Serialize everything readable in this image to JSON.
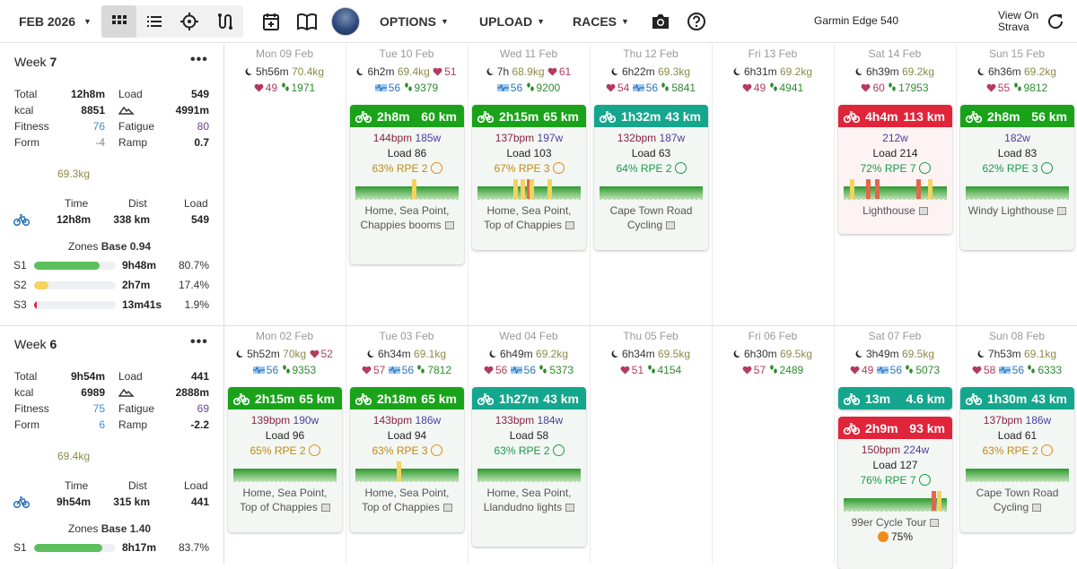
{
  "header": {
    "month": "FEB 2026",
    "options": "OPTIONS",
    "upload": "UPLOAD",
    "races": "RACES",
    "device": "Garmin Edge 540",
    "strava_line1": "View On",
    "strava_line2": "Strava"
  },
  "weeks": [
    {
      "label": "Week",
      "number": "7",
      "total_label": "Total",
      "total": "12h8m",
      "load_label": "Load",
      "load": "549",
      "kcal_label": "kcal",
      "kcal": "8851",
      "elev": "4991m",
      "fitness_label": "Fitness",
      "fitness": "76",
      "fatigue_label": "Fatigue",
      "fatigue": "80",
      "form_label": "Form",
      "form": "-4",
      "ramp_label": "Ramp",
      "ramp": "0.7",
      "weight": "69.3kg",
      "time_h": "Time",
      "dist_h": "Dist",
      "load_h": "Load",
      "bike_time": "12h8m",
      "bike_dist": "338 km",
      "bike_load": "549",
      "zones_label": "Zones",
      "zones_base": "Base 0.94",
      "zones": [
        {
          "name": "S1",
          "time": "9h48m",
          "pct": "80.7%",
          "value": 0.807,
          "color": "#5cbf5c"
        },
        {
          "name": "S2",
          "time": "2h7m",
          "pct": "17.4%",
          "value": 0.174,
          "color": "#f4d35e"
        },
        {
          "name": "S3",
          "time": "13m41s",
          "pct": "1.9%",
          "value": 0.019,
          "color": "#e0243a"
        }
      ]
    },
    {
      "label": "Week",
      "number": "6",
      "total_label": "Total",
      "total": "9h54m",
      "load_label": "Load",
      "load": "441",
      "kcal_label": "kcal",
      "kcal": "6989",
      "elev": "2888m",
      "fitness_label": "Fitness",
      "fitness": "75",
      "fatigue_label": "Fatigue",
      "fatigue": "69",
      "form_label": "Form",
      "form": "6",
      "ramp_label": "Ramp",
      "ramp": "-2.2",
      "weight": "69.4kg",
      "time_h": "Time",
      "dist_h": "Dist",
      "load_h": "Load",
      "bike_time": "9h54m",
      "bike_dist": "315 km",
      "bike_load": "441",
      "zones_label": "Zones",
      "zones_base": "Base 1.40",
      "zones": [
        {
          "name": "S1",
          "time": "8h17m",
          "pct": "83.7%",
          "value": 0.837,
          "color": "#5cbf5c"
        }
      ]
    }
  ],
  "days_w7": [
    {
      "date": "Mon 09 Feb",
      "sleep": "5h56m",
      "kg": "70.4kg",
      "hr": "49",
      "steps": "1971"
    },
    {
      "date": "Tue 10 Feb",
      "sleep": "6h2m",
      "kg": "69.4kg",
      "hrtop": "51",
      "hrv": "56",
      "steps": "9379"
    },
    {
      "date": "Wed 11 Feb",
      "sleep": "7h",
      "kg": "68.9kg",
      "hrtop": "61",
      "hrv": "56",
      "steps": "9200"
    },
    {
      "date": "Thu 12 Feb",
      "sleep": "6h22m",
      "kg": "69.3kg",
      "hr": "54",
      "hrv": "56",
      "steps": "5841"
    },
    {
      "date": "Fri 13 Feb",
      "sleep": "6h31m",
      "kg": "69.2kg",
      "hr": "49",
      "steps": "4941"
    },
    {
      "date": "Sat 14 Feb",
      "sleep": "6h39m",
      "kg": "69.2kg",
      "hr": "60",
      "steps": "17953"
    },
    {
      "date": "Sun 15 Feb",
      "sleep": "6h36m",
      "kg": "69.2kg",
      "hr": "55",
      "steps": "9812"
    }
  ],
  "days_w6": [
    {
      "date": "Mon 02 Feb",
      "sleep": "5h52m",
      "kg": "70kg",
      "hrtop": "52",
      "hrv": "56",
      "steps": "9353"
    },
    {
      "date": "Tue 03 Feb",
      "sleep": "6h34m",
      "kg": "69.1kg",
      "hr": "57",
      "hrv": "56",
      "steps": "7812"
    },
    {
      "date": "Wed 04 Feb",
      "sleep": "6h49m",
      "kg": "69.2kg",
      "hr": "56",
      "hrv": "56",
      "steps": "5373"
    },
    {
      "date": "Thu 05 Feb",
      "sleep": "6h34m",
      "kg": "69.5kg",
      "hr": "51",
      "steps": "4154"
    },
    {
      "date": "Fri 06 Feb",
      "sleep": "6h30m",
      "kg": "69.5kg",
      "hr": "57",
      "steps": "2489"
    },
    {
      "date": "Sat 07 Feb",
      "sleep": "3h49m",
      "kg": "69.5kg",
      "hr": "49",
      "hrv": "56",
      "steps": "5073"
    },
    {
      "date": "Sun 08 Feb",
      "sleep": "7h53m",
      "kg": "69.1kg",
      "hr": "58",
      "hrv": "56",
      "steps": "6333"
    }
  ],
  "cards": [
    {
      "dur": "2h8m",
      "dist": "60 km",
      "bpm": "144bpm",
      "w": "185w",
      "load": "Load 86",
      "pct": "63%",
      "rpe": "RPE 2",
      "place1": "Home, Sea Point,",
      "place2": "Chappies booms"
    },
    {
      "dur": "2h15m",
      "dist": "65 km",
      "bpm": "137bpm",
      "w": "197w",
      "load": "Load 103",
      "pct": "67%",
      "rpe": "RPE 3",
      "place1": "Home, Sea Point,",
      "place2": "Top of Chappies"
    },
    {
      "dur": "1h32m",
      "dist": "43 km",
      "bpm": "132bpm",
      "w": "187w",
      "load": "Load 63",
      "pct": "64%",
      "rpe": "RPE 2",
      "place1": "Cape Town Road",
      "place2": "Cycling"
    },
    {
      "dur": "4h4m",
      "dist": "113 km",
      "w": "212w",
      "load": "Load 214",
      "pct": "72%",
      "rpe": "RPE 7",
      "place1": "Lighthouse"
    },
    {
      "dur": "2h8m",
      "dist": "56 km",
      "w": "182w",
      "load": "Load 83",
      "pct": "62%",
      "rpe": "RPE 3",
      "place1": "Windy Lighthouse"
    },
    {
      "dur": "2h15m",
      "dist": "65 km",
      "bpm": "139bpm",
      "w": "190w",
      "load": "Load 96",
      "pct": "65%",
      "rpe": "RPE 2",
      "place1": "Home, Sea Point,",
      "place2": "Top of Chappies"
    },
    {
      "dur": "2h18m",
      "dist": "65 km",
      "bpm": "143bpm",
      "w": "186w",
      "load": "Load 94",
      "pct": "63%",
      "rpe": "RPE 3",
      "place1": "Home, Sea Point,",
      "place2": "Top of Chappies"
    },
    {
      "dur": "1h27m",
      "dist": "43 km",
      "bpm": "133bpm",
      "w": "184w",
      "load": "Load 58",
      "pct": "63%",
      "rpe": "RPE 2",
      "place1": "Home, Sea Point,",
      "place2": "Llandudno lights"
    },
    {
      "dur": "13m",
      "dist": "4.6 km"
    },
    {
      "dur": "2h9m",
      "dist": "93 km",
      "bpm": "150bpm",
      "w": "224w",
      "load": "Load 127",
      "pct": "76%",
      "rpe": "RPE 7",
      "place1": "99er Cycle Tour",
      "done": "75%"
    },
    {
      "dur": "1h30m",
      "dist": "43 km",
      "bpm": "137bpm",
      "w": "186w",
      "load": "Load 61",
      "pct": "63%",
      "rpe": "RPE 2",
      "place1": "Cape Town Road",
      "place2": "Cycling"
    }
  ],
  "colors": {
    "green": "#1aa31a",
    "teal": "#15a68e",
    "red": "#e0243a"
  },
  "icons": [
    "calendar-grid-icon",
    "list-icon",
    "crosshair-icon",
    "route-icon",
    "add-event-icon",
    "book-icon",
    "camera-icon",
    "help-icon",
    "refresh-icon",
    "bike-icon",
    "moon-icon",
    "heart-icon",
    "steps-icon",
    "hrv-icon",
    "map-icon",
    "smiley-icon",
    "mountain-icon"
  ]
}
